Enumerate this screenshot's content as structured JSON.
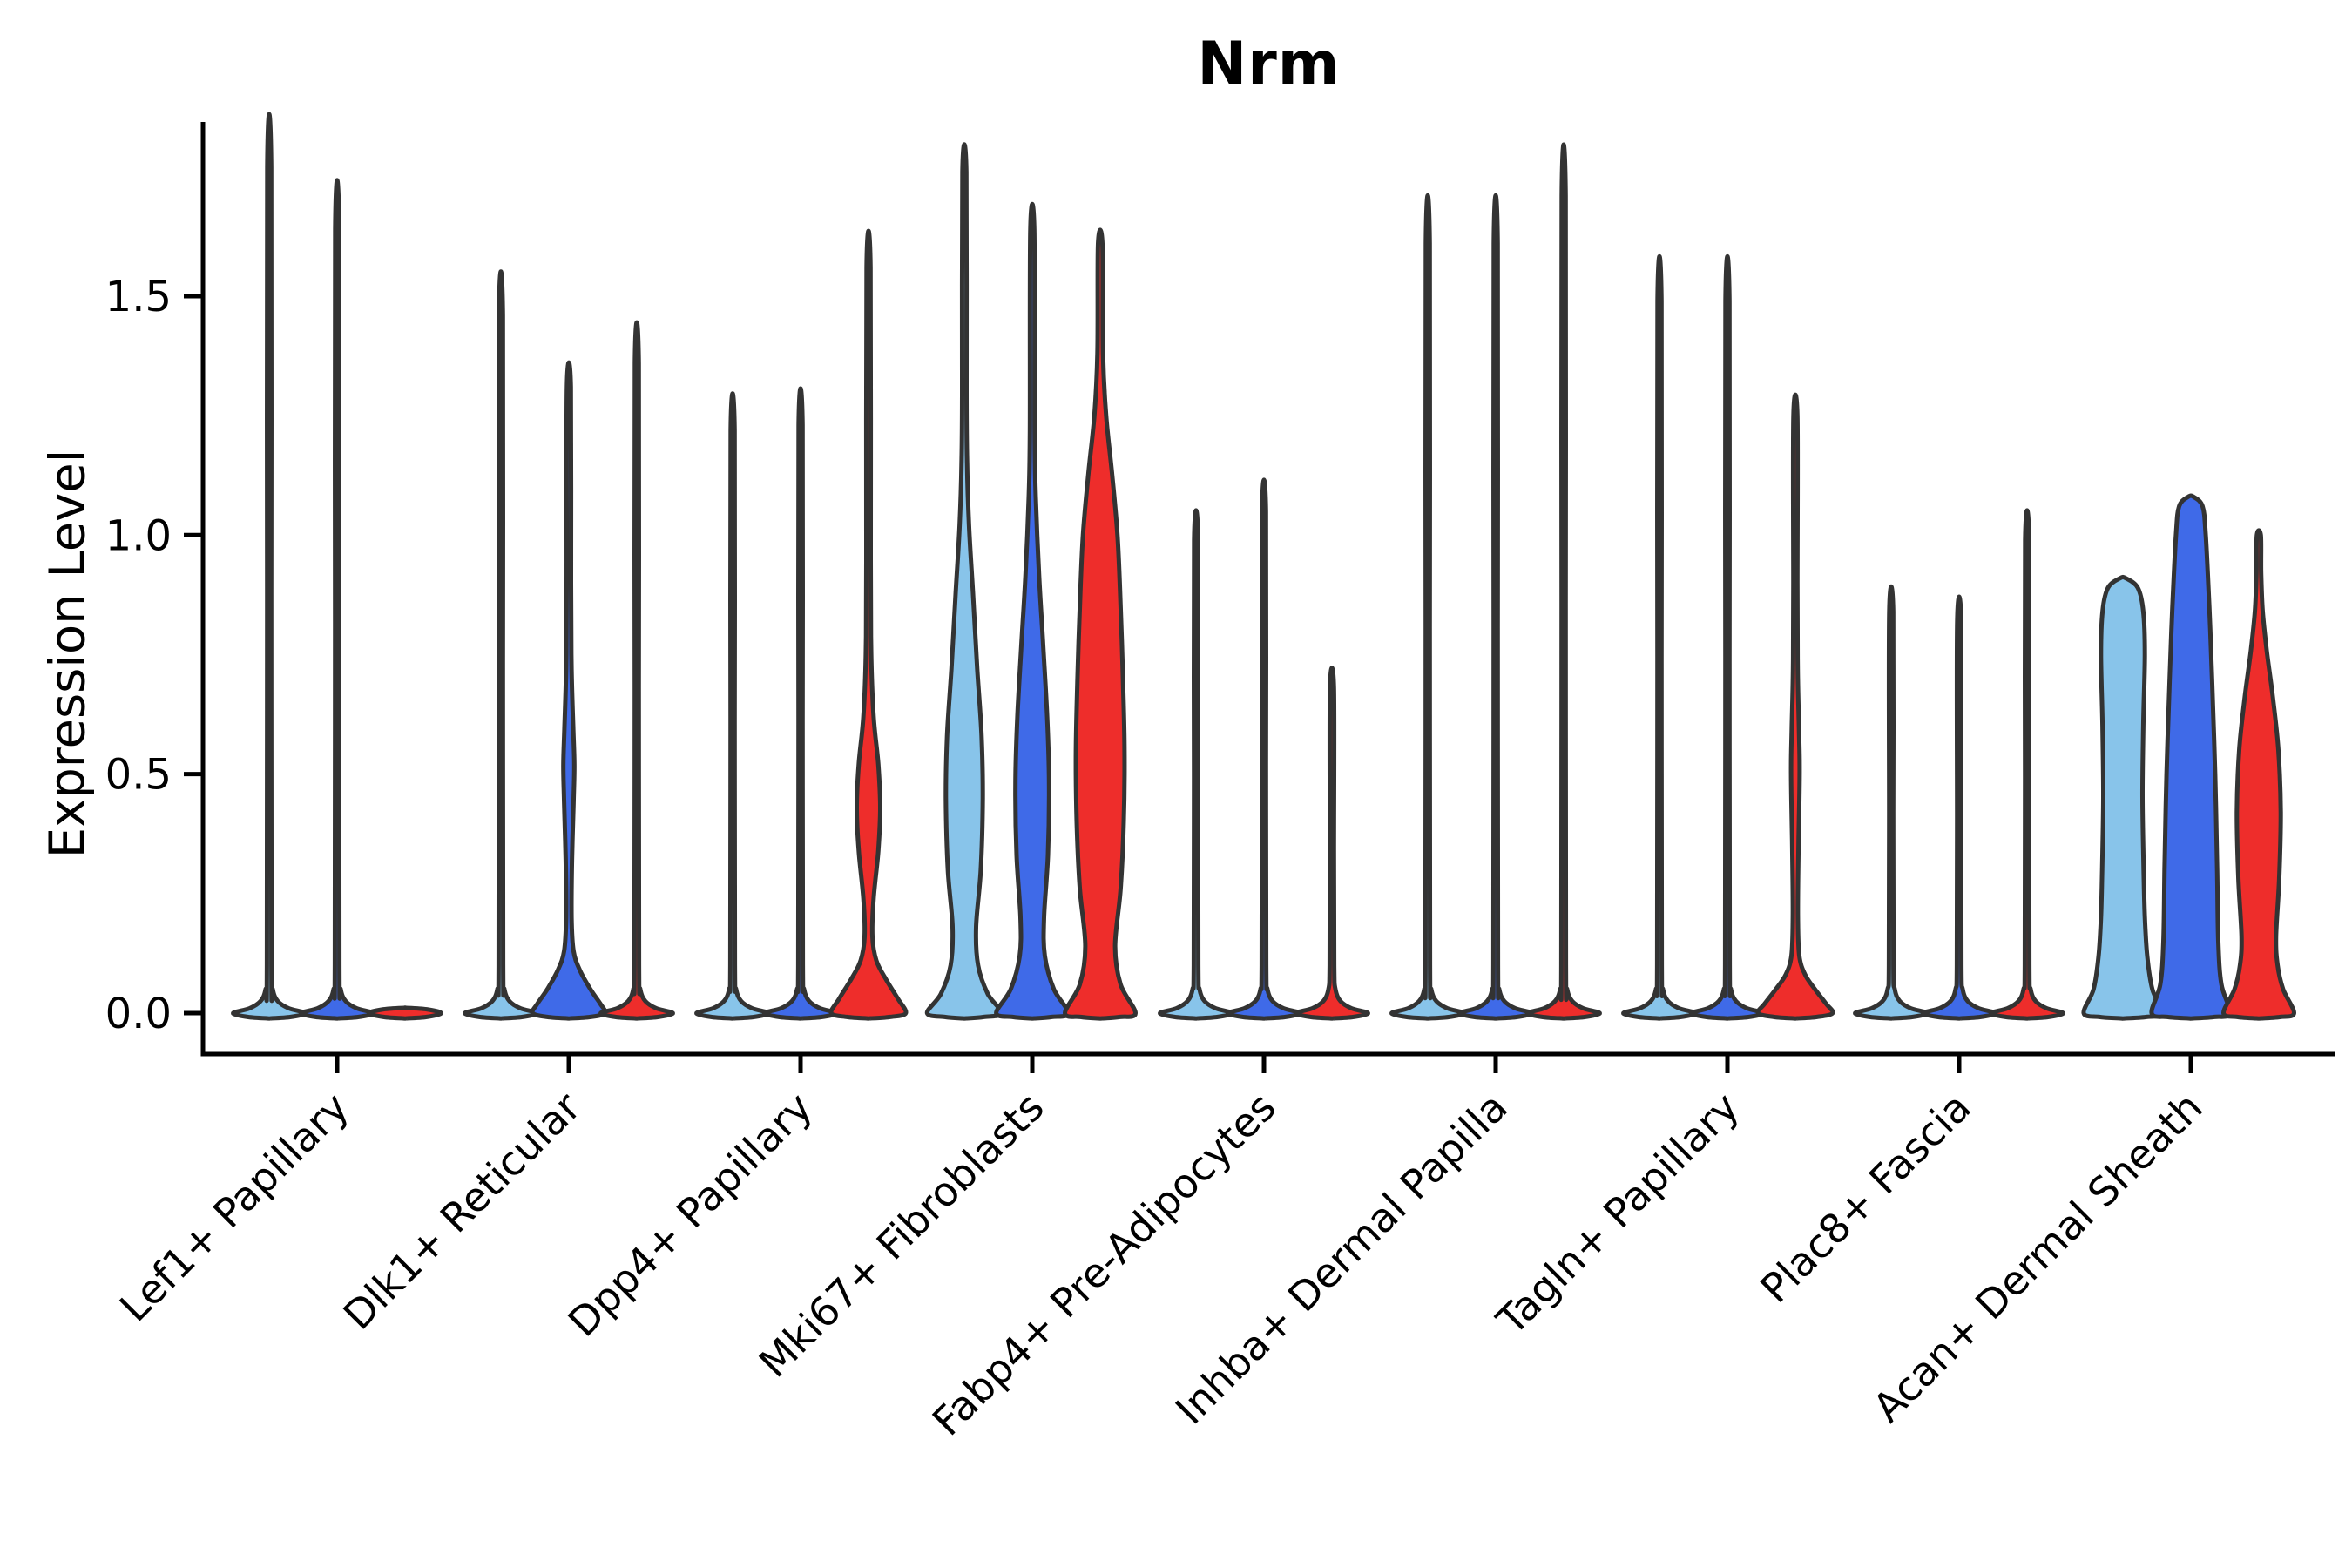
{
  "title": "Nrm",
  "axes": {
    "ylabel": "Expression Level"
  },
  "chart_data": {
    "type": "violin",
    "title": "Nrm",
    "xlabel": "",
    "ylabel": "Expression Level",
    "yticks": [
      0.0,
      0.5,
      1.0,
      1.5
    ],
    "ylim": [
      -0.09,
      1.86
    ],
    "grid": false,
    "legend": "none",
    "outline_color": "#333333",
    "axis_color": "#000000",
    "palette": {
      "sample1": "#88C4EA",
      "sample2": "#3F6AE8",
      "sample3": "#EE2D2B"
    },
    "categories": [
      "Lef1+ Papillary",
      "Dlk1+ Reticular",
      "Dpp4+ Papillary",
      "Mki67+ Fibroblasts",
      "Fabp4+ Pre-Adipocytes",
      "Inhba+ Dermal Papilla",
      "Tagln+ Papillary",
      "Plac8+ Fascia",
      "Acan+ Dermal Sheath"
    ],
    "groups": [
      {
        "category": "Lef1+ Papillary",
        "violins": [
          {
            "color": "#88C4EA",
            "max": 1.77,
            "kind": "spike"
          },
          {
            "color": "#3F6AE8",
            "max": 1.64,
            "kind": "spike"
          },
          {
            "color": "#EE2D2B",
            "max": 0.0,
            "kind": "flat"
          }
        ]
      },
      {
        "category": "Dlk1+ Reticular",
        "violins": [
          {
            "color": "#88C4EA",
            "max": 1.46,
            "kind": "spike"
          },
          {
            "color": "#3F6AE8",
            "max": 1.31,
            "kind": "custom",
            "profile": [
              [
                -0.011,
                0.05
              ],
              [
                -0.008,
                0.55
              ],
              [
                0,
                0.92
              ],
              [
                0.02,
                0.8
              ],
              [
                0.05,
                0.55
              ],
              [
                0.09,
                0.28
              ],
              [
                0.13,
                0.12
              ],
              [
                0.2,
                0.07
              ],
              [
                0.32,
                0.08
              ],
              [
                0.44,
                0.12
              ],
              [
                0.52,
                0.14
              ],
              [
                0.6,
                0.11
              ],
              [
                0.72,
                0.07
              ],
              [
                0.9,
                0.055
              ],
              [
                1.31,
                0.05
              ]
            ]
          },
          {
            "color": "#EE2D2B",
            "max": 1.36,
            "kind": "spike"
          }
        ]
      },
      {
        "category": "Dpp4+ Papillary",
        "violins": [
          {
            "color": "#88C4EA",
            "max": 1.22,
            "kind": "spike"
          },
          {
            "color": "#3F6AE8",
            "max": 1.23,
            "kind": "spike"
          },
          {
            "color": "#EE2D2B",
            "max": 1.56,
            "kind": "custom",
            "profile": [
              [
                -0.011,
                0.05
              ],
              [
                -0.008,
                0.55
              ],
              [
                0,
                0.95
              ],
              [
                0.03,
                0.75
              ],
              [
                0.07,
                0.45
              ],
              [
                0.11,
                0.2
              ],
              [
                0.16,
                0.1
              ],
              [
                0.24,
                0.13
              ],
              [
                0.34,
                0.25
              ],
              [
                0.43,
                0.3
              ],
              [
                0.52,
                0.25
              ],
              [
                0.62,
                0.13
              ],
              [
                0.75,
                0.07
              ],
              [
                0.95,
                0.055
              ],
              [
                1.56,
                0.05
              ]
            ]
          }
        ]
      },
      {
        "category": "Mki67+ Fibroblasts",
        "violins": [
          {
            "color": "#88C4EA",
            "max": 1.76,
            "kind": "custom",
            "profile": [
              [
                -0.011,
                0.05
              ],
              [
                -0.008,
                0.5
              ],
              [
                0,
                0.95
              ],
              [
                0.04,
                0.6
              ],
              [
                0.1,
                0.35
              ],
              [
                0.18,
                0.3
              ],
              [
                0.3,
                0.42
              ],
              [
                0.45,
                0.47
              ],
              [
                0.58,
                0.44
              ],
              [
                0.72,
                0.33
              ],
              [
                0.88,
                0.22
              ],
              [
                1.02,
                0.12
              ],
              [
                1.15,
                0.07
              ],
              [
                1.3,
                0.055
              ],
              [
                1.76,
                0.05
              ]
            ]
          },
          {
            "color": "#3F6AE8",
            "max": 1.64,
            "kind": "custom",
            "profile": [
              [
                -0.011,
                0.05
              ],
              [
                -0.008,
                0.5
              ],
              [
                0,
                0.92
              ],
              [
                0.05,
                0.55
              ],
              [
                0.12,
                0.32
              ],
              [
                0.2,
                0.3
              ],
              [
                0.33,
                0.4
              ],
              [
                0.48,
                0.43
              ],
              [
                0.62,
                0.38
              ],
              [
                0.78,
                0.27
              ],
              [
                0.92,
                0.17
              ],
              [
                1.08,
                0.09
              ],
              [
                1.22,
                0.06
              ],
              [
                1.64,
                0.05
              ]
            ]
          },
          {
            "color": "#EE2D2B",
            "max": 1.61,
            "kind": "custom",
            "profile": [
              [
                -0.011,
                0.05
              ],
              [
                -0.008,
                0.5
              ],
              [
                0,
                0.9
              ],
              [
                0.06,
                0.52
              ],
              [
                0.14,
                0.38
              ],
              [
                0.26,
                0.52
              ],
              [
                0.4,
                0.6
              ],
              [
                0.55,
                0.62
              ],
              [
                0.7,
                0.58
              ],
              [
                0.85,
                0.52
              ],
              [
                1.0,
                0.44
              ],
              [
                1.13,
                0.3
              ],
              [
                1.25,
                0.15
              ],
              [
                1.38,
                0.07
              ],
              [
                1.61,
                0.055
              ]
            ]
          }
        ]
      },
      {
        "category": "Fabp4+ Pre-Adipocytes",
        "violins": [
          {
            "color": "#88C4EA",
            "max": 0.99,
            "kind": "spike"
          },
          {
            "color": "#3F6AE8",
            "max": 1.05,
            "kind": "spike"
          },
          {
            "color": "#EE2D2B",
            "max": 0.68,
            "kind": "spike"
          }
        ]
      },
      {
        "category": "Inhba+ Dermal Papilla",
        "violins": [
          {
            "color": "#88C4EA",
            "max": 1.61,
            "kind": "spike"
          },
          {
            "color": "#3F6AE8",
            "max": 1.61,
            "kind": "spike"
          },
          {
            "color": "#EE2D2B",
            "max": 1.71,
            "kind": "spike"
          }
        ]
      },
      {
        "category": "Tagln+ Papillary",
        "violins": [
          {
            "color": "#88C4EA",
            "max": 1.49,
            "kind": "spike"
          },
          {
            "color": "#3F6AE8",
            "max": 1.49,
            "kind": "spike"
          },
          {
            "color": "#EE2D2B",
            "max": 1.25,
            "kind": "custom",
            "profile": [
              [
                -0.011,
                0.05
              ],
              [
                -0.008,
                0.55
              ],
              [
                0,
                0.95
              ],
              [
                0.02,
                0.78
              ],
              [
                0.05,
                0.5
              ],
              [
                0.08,
                0.25
              ],
              [
                0.12,
                0.1
              ],
              [
                0.2,
                0.065
              ],
              [
                0.32,
                0.075
              ],
              [
                0.44,
                0.1
              ],
              [
                0.52,
                0.11
              ],
              [
                0.6,
                0.09
              ],
              [
                0.72,
                0.06
              ],
              [
                0.9,
                0.052
              ],
              [
                1.25,
                0.05
              ]
            ]
          }
        ]
      },
      {
        "category": "Plac8+ Fascia",
        "violins": [
          {
            "color": "#88C4EA",
            "max": 0.84,
            "kind": "spike"
          },
          {
            "color": "#3F6AE8",
            "max": 0.82,
            "kind": "spike"
          },
          {
            "color": "#EE2D2B",
            "max": 0.99,
            "kind": "spike"
          }
        ]
      },
      {
        "category": "Acan+ Dermal Sheath",
        "violins": [
          {
            "color": "#88C4EA",
            "max": 0.91,
            "kind": "custom",
            "profile": [
              [
                -0.011,
                0.06
              ],
              [
                -0.008,
                0.6
              ],
              [
                0,
                1.0
              ],
              [
                0.05,
                0.75
              ],
              [
                0.12,
                0.62
              ],
              [
                0.2,
                0.56
              ],
              [
                0.3,
                0.53
              ],
              [
                0.45,
                0.5
              ],
              [
                0.6,
                0.52
              ],
              [
                0.75,
                0.56
              ],
              [
                0.84,
                0.52
              ],
              [
                0.89,
                0.38
              ],
              [
                0.91,
                0.07
              ]
            ]
          },
          {
            "color": "#3F6AE8",
            "max": 1.08,
            "kind": "custom",
            "profile": [
              [
                -0.011,
                0.06
              ],
              [
                -0.008,
                0.6
              ],
              [
                0,
                1.0
              ],
              [
                0.06,
                0.78
              ],
              [
                0.15,
                0.7
              ],
              [
                0.3,
                0.67
              ],
              [
                0.5,
                0.62
              ],
              [
                0.7,
                0.54
              ],
              [
                0.85,
                0.47
              ],
              [
                1.0,
                0.38
              ],
              [
                1.06,
                0.3
              ],
              [
                1.08,
                0.07
              ]
            ]
          },
          {
            "color": "#EE2D2B",
            "max": 1.0,
            "kind": "custom",
            "profile": [
              [
                -0.011,
                0.06
              ],
              [
                -0.008,
                0.55
              ],
              [
                0,
                0.9
              ],
              [
                0.05,
                0.62
              ],
              [
                0.1,
                0.48
              ],
              [
                0.16,
                0.44
              ],
              [
                0.28,
                0.52
              ],
              [
                0.42,
                0.56
              ],
              [
                0.55,
                0.5
              ],
              [
                0.66,
                0.36
              ],
              [
                0.76,
                0.2
              ],
              [
                0.84,
                0.1
              ],
              [
                0.92,
                0.06
              ],
              [
                1.0,
                0.05
              ]
            ]
          }
        ]
      }
    ]
  }
}
